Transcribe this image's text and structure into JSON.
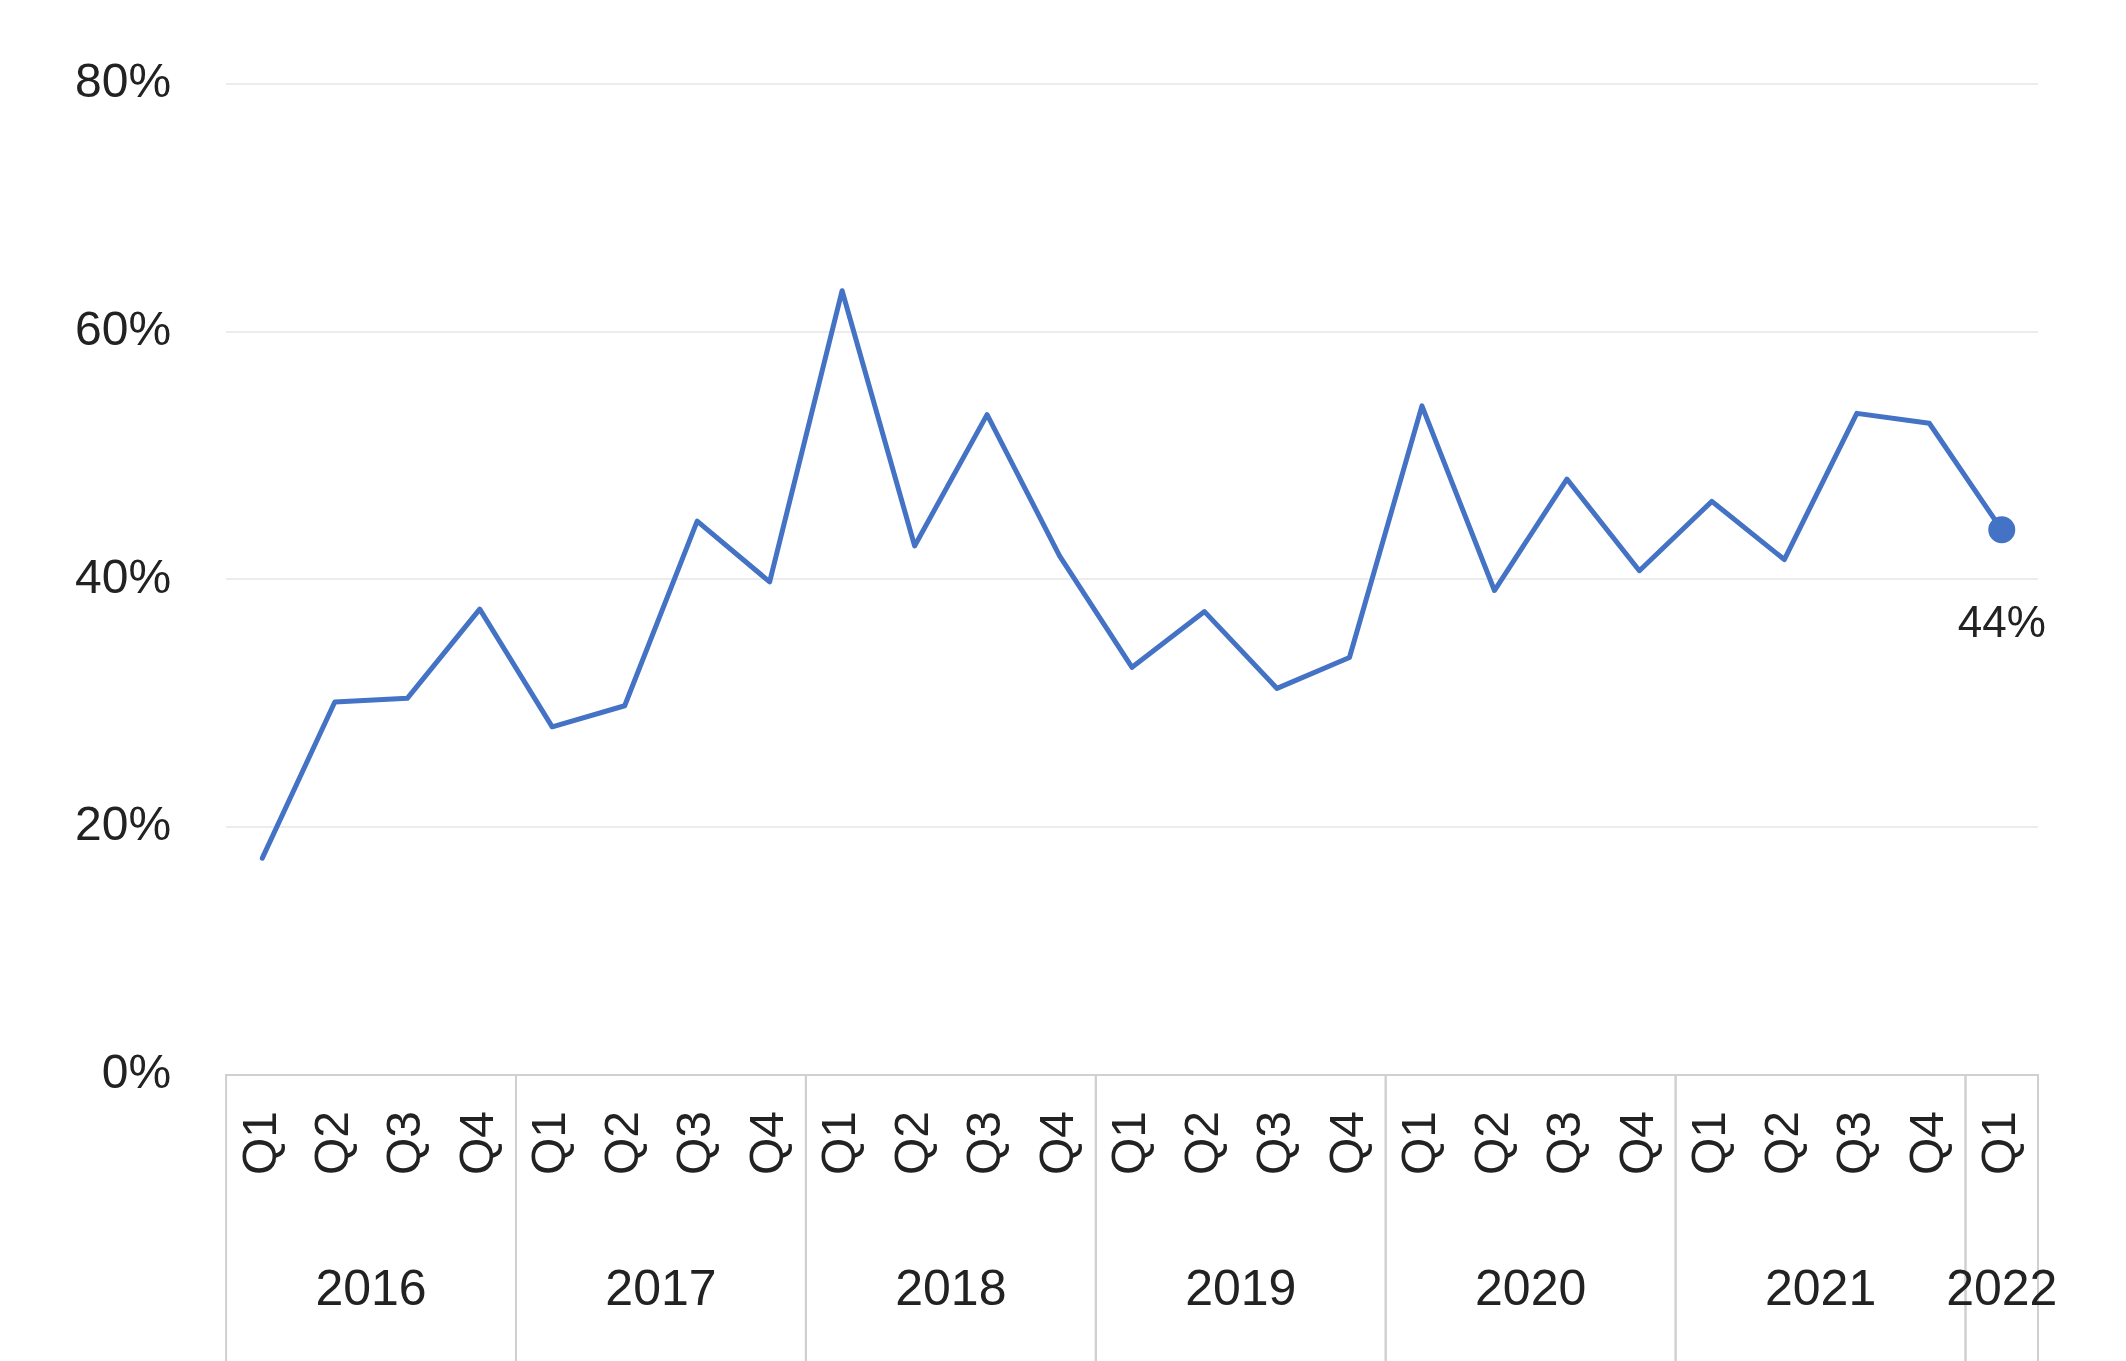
{
  "chart_data": {
    "type": "line",
    "categories": [
      "Q1",
      "Q2",
      "Q3",
      "Q4",
      "Q1",
      "Q2",
      "Q3",
      "Q4",
      "Q1",
      "Q2",
      "Q3",
      "Q4",
      "Q1",
      "Q2",
      "Q3",
      "Q4",
      "Q1",
      "Q2",
      "Q3",
      "Q4",
      "Q1",
      "Q2",
      "Q3",
      "Q4",
      "Q1"
    ],
    "series": [
      {
        "color": "#4472c4",
        "values": [
          17.5,
          30.1,
          30.4,
          37.6,
          28.1,
          29.8,
          44.7,
          39.8,
          63.3,
          42.7,
          53.3,
          41.9,
          32.9,
          37.4,
          31.2,
          33.7,
          54.0,
          39.1,
          48.1,
          40.7,
          46.3,
          41.6,
          53.4,
          52.6,
          44
        ],
        "value_labels": [
          null,
          null,
          null,
          null,
          null,
          null,
          null,
          null,
          null,
          null,
          null,
          null,
          null,
          null,
          null,
          null,
          null,
          null,
          null,
          null,
          null,
          null,
          null,
          null,
          "44%"
        ]
      }
    ],
    "annotations": [
      "2016",
      "2017",
      "2018",
      "2019",
      "2020",
      "2021",
      "2022"
    ],
    "ylim": [
      0,
      80
    ],
    "yticks": [
      {
        "value": 0,
        "label": "0%"
      },
      {
        "value": 20,
        "label": "20%"
      },
      {
        "value": 40,
        "label": "40%"
      },
      {
        "value": 60,
        "label": "60%"
      },
      {
        "value": 80,
        "label": "80%"
      }
    ],
    "grid": "y",
    "legend": false
  }
}
